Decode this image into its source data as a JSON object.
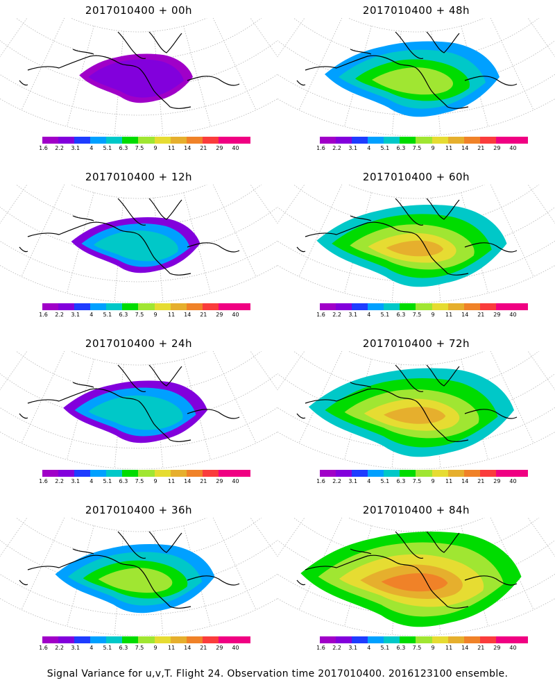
{
  "panels": [
    {
      "title": "2017010400 + 00h",
      "level": 1
    },
    {
      "title": "2017010400 + 48h",
      "level": 5
    },
    {
      "title": "2017010400 + 12h",
      "level": 2
    },
    {
      "title": "2017010400 + 60h",
      "level": 6
    },
    {
      "title": "2017010400 + 24h",
      "level": 3
    },
    {
      "title": "2017010400 + 72h",
      "level": 7
    },
    {
      "title": "2017010400 + 36h",
      "level": 4
    },
    {
      "title": "2017010400 + 84h",
      "level": 8
    }
  ],
  "legend": {
    "tick_labels": [
      "1.6",
      "2.2",
      "3.1",
      "4",
      "5.1",
      "6.3",
      "7.5",
      "9",
      "11",
      "14",
      "21",
      "29",
      "40"
    ],
    "colors": [
      "#a000c8",
      "#8200dc",
      "#1e3cff",
      "#00a0ff",
      "#00c8c8",
      "#00dc00",
      "#a0e632",
      "#e6dc32",
      "#e6af2d",
      "#f08228",
      "#fa3c3c",
      "#f00082",
      "#f00082"
    ]
  },
  "footer": "Signal Variance for u,v,T. Flight 24. Observation time 2017010400. 2016123100 ensemble."
}
